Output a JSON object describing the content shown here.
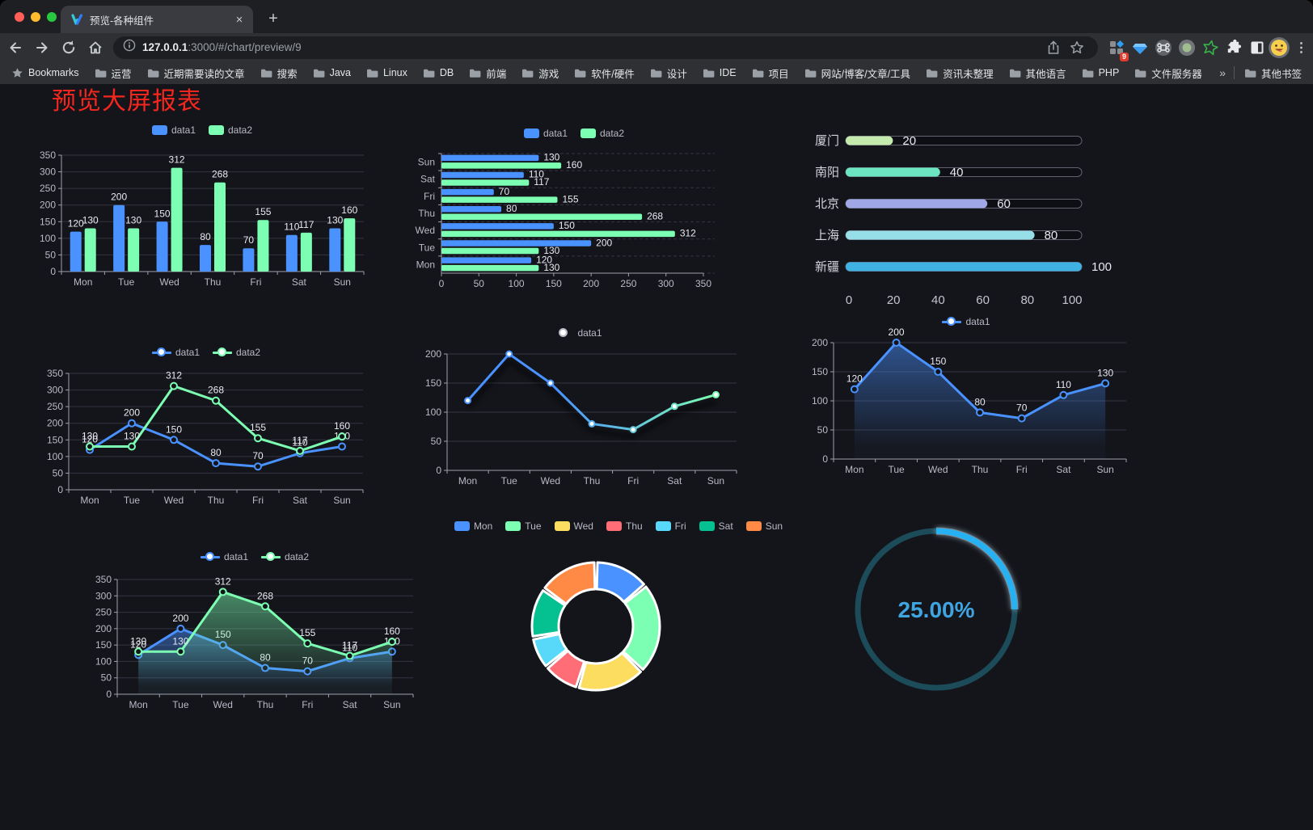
{
  "browser": {
    "tab": {
      "title": "预览-各种组件",
      "close_glyph": "×"
    },
    "new_tab_glyph": "+",
    "omnibox": {
      "url_host": "127.0.0.1",
      "url_path": ":3000/#/chart/preview/9"
    },
    "extensions_badge": "9",
    "menu_glyph": "⋮",
    "bookmarks_bar": {
      "bookmarks_label": "Bookmarks",
      "folders": [
        "运营",
        "近期需要读的文章",
        "搜索",
        "Java",
        "Linux",
        "DB",
        "前端",
        "游戏",
        "软件/硬件",
        "设计",
        "IDE",
        "项目",
        "网站/博客/文章/工具",
        "资讯未整理",
        "其他语言",
        "PHP",
        "文件服务器"
      ],
      "overflow_glyph": "»",
      "other_bookmarks": "其他书签"
    }
  },
  "page": {
    "title": "预览大屏报表",
    "title_color": "#f5261d",
    "background": "#14151b"
  },
  "chart_data": [
    {
      "id": "c1",
      "type": "bar",
      "title": "",
      "categories": [
        "Mon",
        "Tue",
        "Wed",
        "Thu",
        "Fri",
        "Sat",
        "Sun"
      ],
      "series": [
        {
          "name": "data1",
          "color": "#4992ff",
          "values": [
            120,
            200,
            150,
            80,
            70,
            110,
            130
          ]
        },
        {
          "name": "data2",
          "color": "#7cffb2",
          "values": [
            130,
            130,
            312,
            268,
            155,
            117,
            160
          ]
        }
      ],
      "ylim": [
        0,
        350
      ],
      "ytick": 50,
      "legend_position": "top",
      "grid": true,
      "value_labels": true
    },
    {
      "id": "c2",
      "type": "bar-horizontal",
      "categories": [
        "Mon",
        "Tue",
        "Wed",
        "Thu",
        "Fri",
        "Sat",
        "Sun"
      ],
      "display_order": "Sun-at-top",
      "series": [
        {
          "name": "data1",
          "color": "#4992ff",
          "values": [
            120,
            200,
            150,
            80,
            70,
            110,
            130
          ]
        },
        {
          "name": "data2",
          "color": "#7cffb2",
          "values": [
            130,
            130,
            312,
            268,
            155,
            117,
            160
          ]
        }
      ],
      "xlim": [
        0,
        350
      ],
      "xtick": 50,
      "legend_position": "top",
      "value_labels": true
    },
    {
      "id": "c3",
      "type": "progress-bars",
      "rows": [
        {
          "label": "厦门",
          "value": 20,
          "color": "#c4ebad"
        },
        {
          "label": "南阳",
          "value": 40,
          "color": "#6be6c1"
        },
        {
          "label": "北京",
          "value": 60,
          "color": "#a0a7e6"
        },
        {
          "label": "上海",
          "value": 80,
          "color": "#96dee8"
        },
        {
          "label": "新疆",
          "value": 100,
          "color": "#3fb1e3"
        }
      ],
      "xlim": [
        0,
        100
      ],
      "xticks": [
        0,
        20,
        40,
        60,
        80,
        100
      ]
    },
    {
      "id": "c4",
      "type": "line",
      "categories": [
        "Mon",
        "Tue",
        "Wed",
        "Thu",
        "Fri",
        "Sat",
        "Sun"
      ],
      "series": [
        {
          "name": "data1",
          "color": "#4992ff",
          "values": [
            120,
            200,
            150,
            80,
            70,
            110,
            130
          ]
        },
        {
          "name": "data2",
          "color": "#7cffb2",
          "values": [
            130,
            130,
            312,
            268,
            155,
            117,
            160
          ]
        }
      ],
      "ylim": [
        0,
        350
      ],
      "ytick": 50,
      "legend_position": "top",
      "value_labels": true
    },
    {
      "id": "c5",
      "type": "line-gradient",
      "categories": [
        "Mon",
        "Tue",
        "Wed",
        "Thu",
        "Fri",
        "Sat",
        "Sun"
      ],
      "series": [
        {
          "name": "data1",
          "gradient": [
            "#4992ff",
            "#7cffb2"
          ],
          "values": [
            120,
            200,
            150,
            80,
            70,
            110,
            130
          ]
        }
      ],
      "ylim": [
        0,
        200
      ],
      "ytick": 50,
      "legend_position": "top",
      "value_labels": false
    },
    {
      "id": "c6",
      "type": "line-area",
      "categories": [
        "Mon",
        "Tue",
        "Wed",
        "Thu",
        "Fri",
        "Sat",
        "Sun"
      ],
      "series": [
        {
          "name": "data1",
          "color": "#4992ff",
          "area": true,
          "values": [
            120,
            200,
            150,
            80,
            70,
            110,
            130
          ]
        }
      ],
      "ylim": [
        0,
        200
      ],
      "ytick": 50,
      "legend_position": "top",
      "value_labels": true
    },
    {
      "id": "c7",
      "type": "line-area",
      "categories": [
        "Mon",
        "Tue",
        "Wed",
        "Thu",
        "Fri",
        "Sat",
        "Sun"
      ],
      "series": [
        {
          "name": "data1",
          "color": "#4992ff",
          "area": true,
          "values": [
            120,
            200,
            150,
            80,
            70,
            110,
            130
          ]
        },
        {
          "name": "data2",
          "color": "#7cffb2",
          "area": true,
          "values": [
            130,
            130,
            312,
            268,
            155,
            117,
            160
          ]
        }
      ],
      "ylim": [
        0,
        350
      ],
      "ytick": 50,
      "legend_position": "top",
      "value_labels": true
    },
    {
      "id": "c8",
      "type": "pie",
      "inner_radius_ratio": 0.58,
      "legend_position": "top",
      "items": [
        {
          "label": "Mon",
          "value": 120,
          "color": "#4992ff"
        },
        {
          "label": "Tue",
          "value": 200,
          "color": "#7cffb2"
        },
        {
          "label": "Wed",
          "value": 150,
          "color": "#fddd60"
        },
        {
          "label": "Thu",
          "value": 80,
          "color": "#ff6e76"
        },
        {
          "label": "Fri",
          "value": 70,
          "color": "#58d9f9"
        },
        {
          "label": "Sat",
          "value": 110,
          "color": "#05c091"
        },
        {
          "label": "Sun",
          "value": 130,
          "color": "#ff8a45"
        }
      ]
    },
    {
      "id": "c9",
      "type": "ring-progress",
      "value": 25,
      "label": "25.00%",
      "color": "#25b1f2",
      "track_color": "#1c4b59",
      "text_color": "#3fa4e0"
    }
  ]
}
